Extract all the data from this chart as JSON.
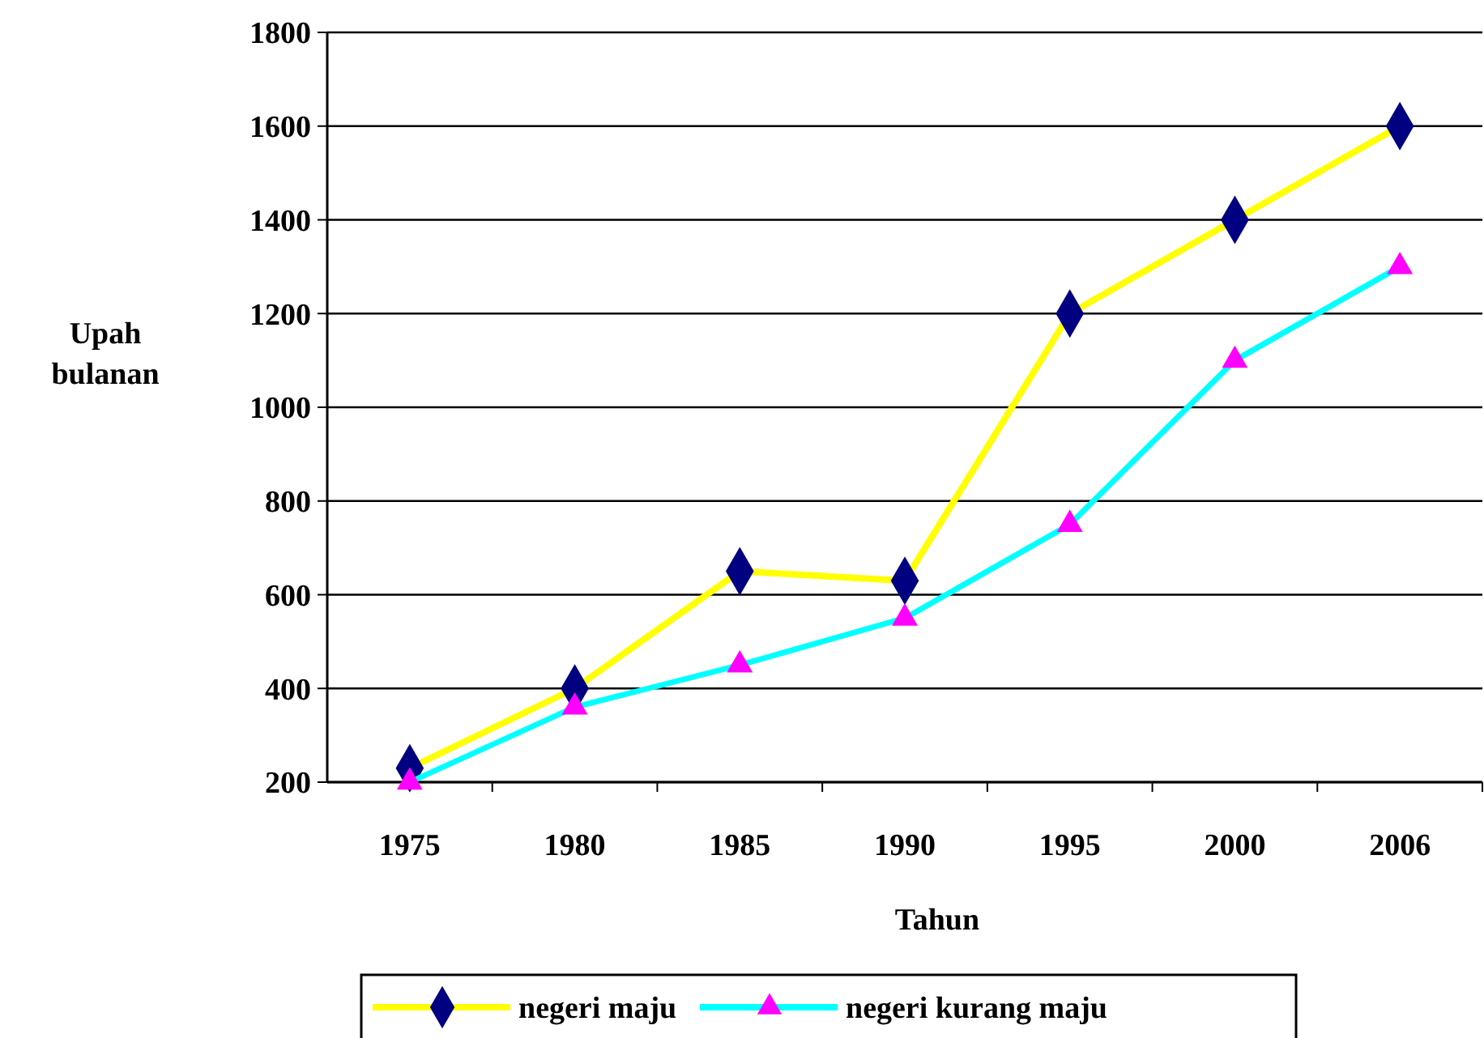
{
  "chart_data": {
    "type": "line",
    "xlabel": "Tahun",
    "ylabel": "Upah bulanan",
    "categories": [
      "1975",
      "1980",
      "1985",
      "1990",
      "1995",
      "2000",
      "2006"
    ],
    "series": [
      {
        "name": "negeri maju",
        "color": "#ffff00",
        "marker": "diamond",
        "colors": [
          "#000080",
          "#000080",
          "#000080",
          "#000080",
          "#000080",
          "#000080",
          "#000080"
        ],
        "values": [
          230,
          400,
          650,
          630,
          1200,
          1400,
          1600
        ]
      },
      {
        "name": "negeri kurang maju",
        "color": "#00ffff",
        "marker": "triangle",
        "colors": [
          "#ff00ff",
          "#ff00ff",
          "#ff00ff",
          "#ff00ff",
          "#ff00ff",
          "#ff00ff",
          "#ff00ff"
        ],
        "values": [
          200,
          360,
          450,
          550,
          750,
          1100,
          1300
        ]
      }
    ],
    "ylim": [
      200,
      1800
    ],
    "yticks": [
      200,
      400,
      600,
      800,
      1000,
      1200,
      1400,
      1600,
      1800
    ],
    "grid": "y",
    "legend": "bottom"
  }
}
